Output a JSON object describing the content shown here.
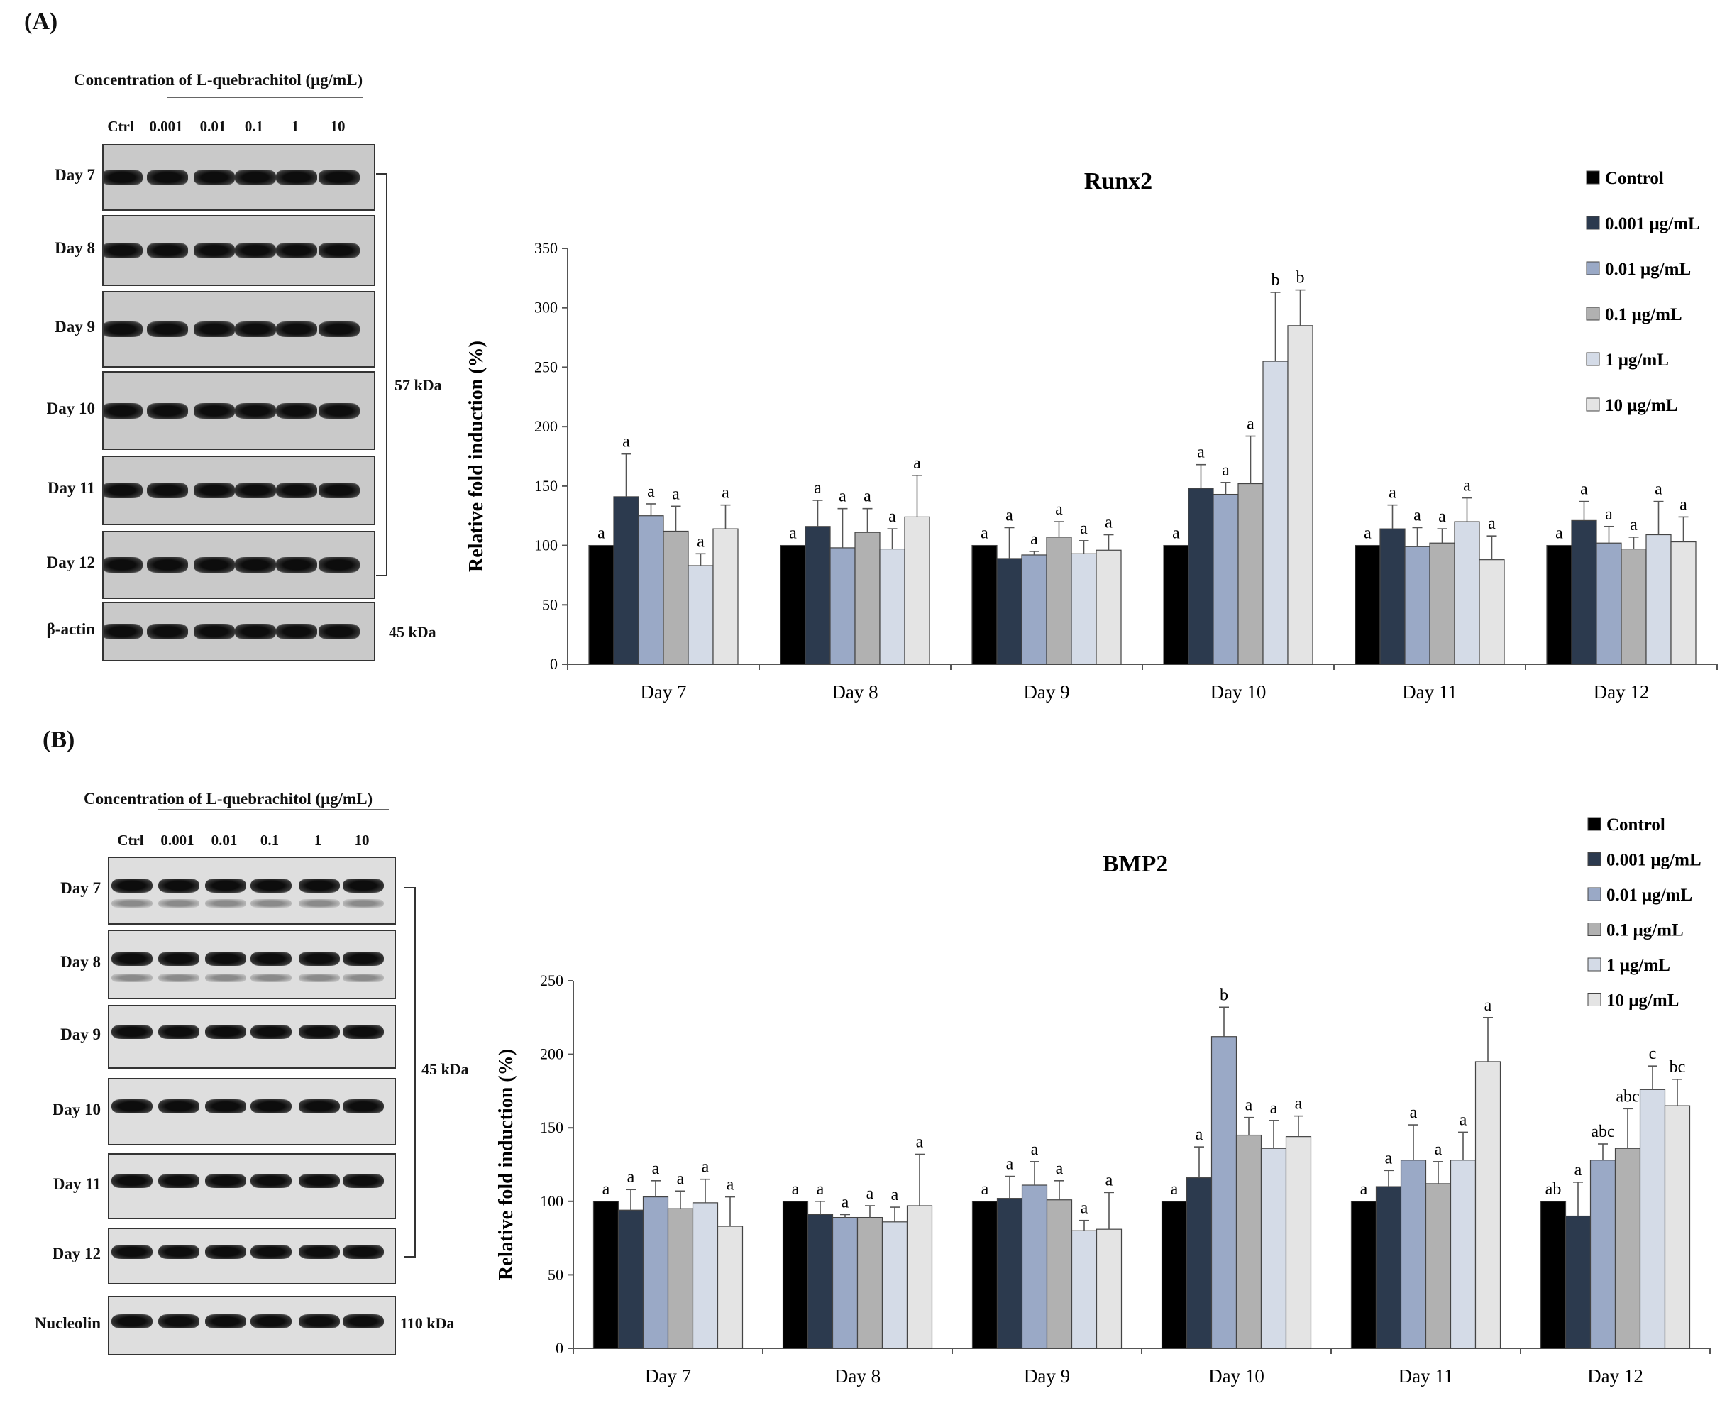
{
  "panel_a": {
    "label": "(A)",
    "blot": {
      "concentration_title": "Concentration of L-quebrachitol (μg/mL)",
      "lanes": [
        "Ctrl",
        "0.001",
        "0.01",
        "0.1",
        "1",
        "10"
      ],
      "rows": [
        "Day 7",
        "Day 8",
        "Day 9",
        "Day 10",
        "Day 11",
        "Day 12"
      ],
      "loading_label": "β-actin",
      "target_kda": "57 kDa",
      "loading_kda": "45 kDa"
    }
  },
  "panel_b": {
    "label": "(B)",
    "blot": {
      "concentration_title": "Concentration of L-quebrachitol (μg/mL)",
      "lanes": [
        "Ctrl",
        "0.001",
        "0.01",
        "0.1",
        "1",
        "10"
      ],
      "rows": [
        "Day 7",
        "Day 8",
        "Day 9",
        "Day 10",
        "Day 11",
        "Day 12"
      ],
      "loading_label": "Nucleolin",
      "target_kda": "45 kDa",
      "loading_kda": "110 kDa"
    }
  },
  "chart_data": [
    {
      "type": "bar",
      "title": "Runx2",
      "xlabel": "",
      "ylabel": "Relative fold induction (%)",
      "ylim": [
        0,
        350
      ],
      "yticks": [
        0,
        50,
        100,
        150,
        200,
        250,
        300,
        350
      ],
      "legend_position": "top-right",
      "categories": [
        "Day 7",
        "Day 8",
        "Day 9",
        "Day 10",
        "Day 11",
        "Day 12"
      ],
      "series": [
        {
          "name": "Control",
          "color": "#000000",
          "values": [
            100,
            100,
            100,
            100,
            100,
            100
          ],
          "errors": [
            0,
            0,
            0,
            0,
            0,
            0
          ],
          "labels": [
            "a",
            "a",
            "a",
            "a",
            "a",
            "a"
          ]
        },
        {
          "name": "0.001 μg/mL",
          "color": "#2c3a4e",
          "values": [
            141,
            116,
            89,
            148,
            114,
            121
          ],
          "errors": [
            36,
            22,
            26,
            20,
            20,
            16
          ],
          "labels": [
            "a",
            "a",
            "a",
            "a",
            "a",
            "a"
          ]
        },
        {
          "name": "0.01 μg/mL",
          "color": "#9aa9c6",
          "values": [
            125,
            98,
            92,
            143,
            99,
            102
          ],
          "errors": [
            10,
            33,
            3,
            10,
            16,
            14
          ],
          "labels": [
            "a",
            "a",
            "a",
            "a",
            "a",
            "a"
          ]
        },
        {
          "name": "0.1 μg/mL",
          "color": "#b1b1b1",
          "values": [
            112,
            111,
            107,
            152,
            102,
            97
          ],
          "errors": [
            21,
            20,
            13,
            40,
            12,
            10
          ],
          "labels": [
            "a",
            "a",
            "a",
            "a",
            "a",
            "a"
          ]
        },
        {
          "name": "1 μg/mL",
          "color": "#d4dbe7",
          "values": [
            83,
            97,
            93,
            255,
            120,
            109
          ],
          "errors": [
            10,
            17,
            11,
            58,
            20,
            28
          ],
          "labels": [
            "a",
            "a",
            "a",
            "b",
            "a",
            "a"
          ]
        },
        {
          "name": "10 μg/mL",
          "color": "#e4e4e4",
          "values": [
            114,
            124,
            96,
            285,
            88,
            103
          ],
          "errors": [
            20,
            35,
            13,
            30,
            20,
            21
          ],
          "labels": [
            "a",
            "a",
            "a",
            "b",
            "a",
            "a"
          ]
        }
      ]
    },
    {
      "type": "bar",
      "title": "BMP2",
      "xlabel": "",
      "ylabel": "Relative fold induction (%)",
      "ylim": [
        0,
        250
      ],
      "yticks": [
        0,
        50,
        100,
        150,
        200,
        250
      ],
      "legend_position": "top-right",
      "categories": [
        "Day 7",
        "Day 8",
        "Day 9",
        "Day 10",
        "Day 11",
        "Day 12"
      ],
      "series": [
        {
          "name": "Control",
          "color": "#000000",
          "values": [
            100,
            100,
            100,
            100,
            100,
            100
          ],
          "errors": [
            0,
            0,
            0,
            0,
            0,
            0
          ],
          "labels": [
            "a",
            "a",
            "a",
            "a",
            "a",
            "ab"
          ]
        },
        {
          "name": "0.001 μg/mL",
          "color": "#2c3a4e",
          "values": [
            94,
            91,
            102,
            116,
            110,
            90
          ],
          "errors": [
            14,
            9,
            15,
            21,
            11,
            23
          ],
          "labels": [
            "a",
            "a",
            "a",
            "a",
            "a",
            "a"
          ]
        },
        {
          "name": "0.01 μg/mL",
          "color": "#9aa9c6",
          "values": [
            103,
            89,
            111,
            212,
            128,
            128
          ],
          "errors": [
            11,
            2,
            16,
            20,
            24,
            11
          ],
          "labels": [
            "a",
            "a",
            "a",
            "b",
            "a",
            "abc"
          ]
        },
        {
          "name": "0.1 μg/mL",
          "color": "#b1b1b1",
          "values": [
            95,
            89,
            101,
            145,
            112,
            136
          ],
          "errors": [
            12,
            8,
            13,
            12,
            15,
            27
          ],
          "labels": [
            "a",
            "a",
            "a",
            "a",
            "a",
            "abc"
          ]
        },
        {
          "name": "1 μg/mL",
          "color": "#d4dbe7",
          "values": [
            99,
            86,
            80,
            136,
            128,
            176
          ],
          "errors": [
            16,
            10,
            7,
            19,
            19,
            16
          ],
          "labels": [
            "a",
            "a",
            "a",
            "a",
            "a",
            "c"
          ]
        },
        {
          "name": "10 μg/mL",
          "color": "#e4e4e4",
          "values": [
            83,
            97,
            81,
            144,
            195,
            165
          ],
          "errors": [
            20,
            35,
            25,
            14,
            30,
            18
          ],
          "labels": [
            "a",
            "a",
            "a",
            "a",
            "a",
            "bc"
          ]
        }
      ]
    }
  ]
}
